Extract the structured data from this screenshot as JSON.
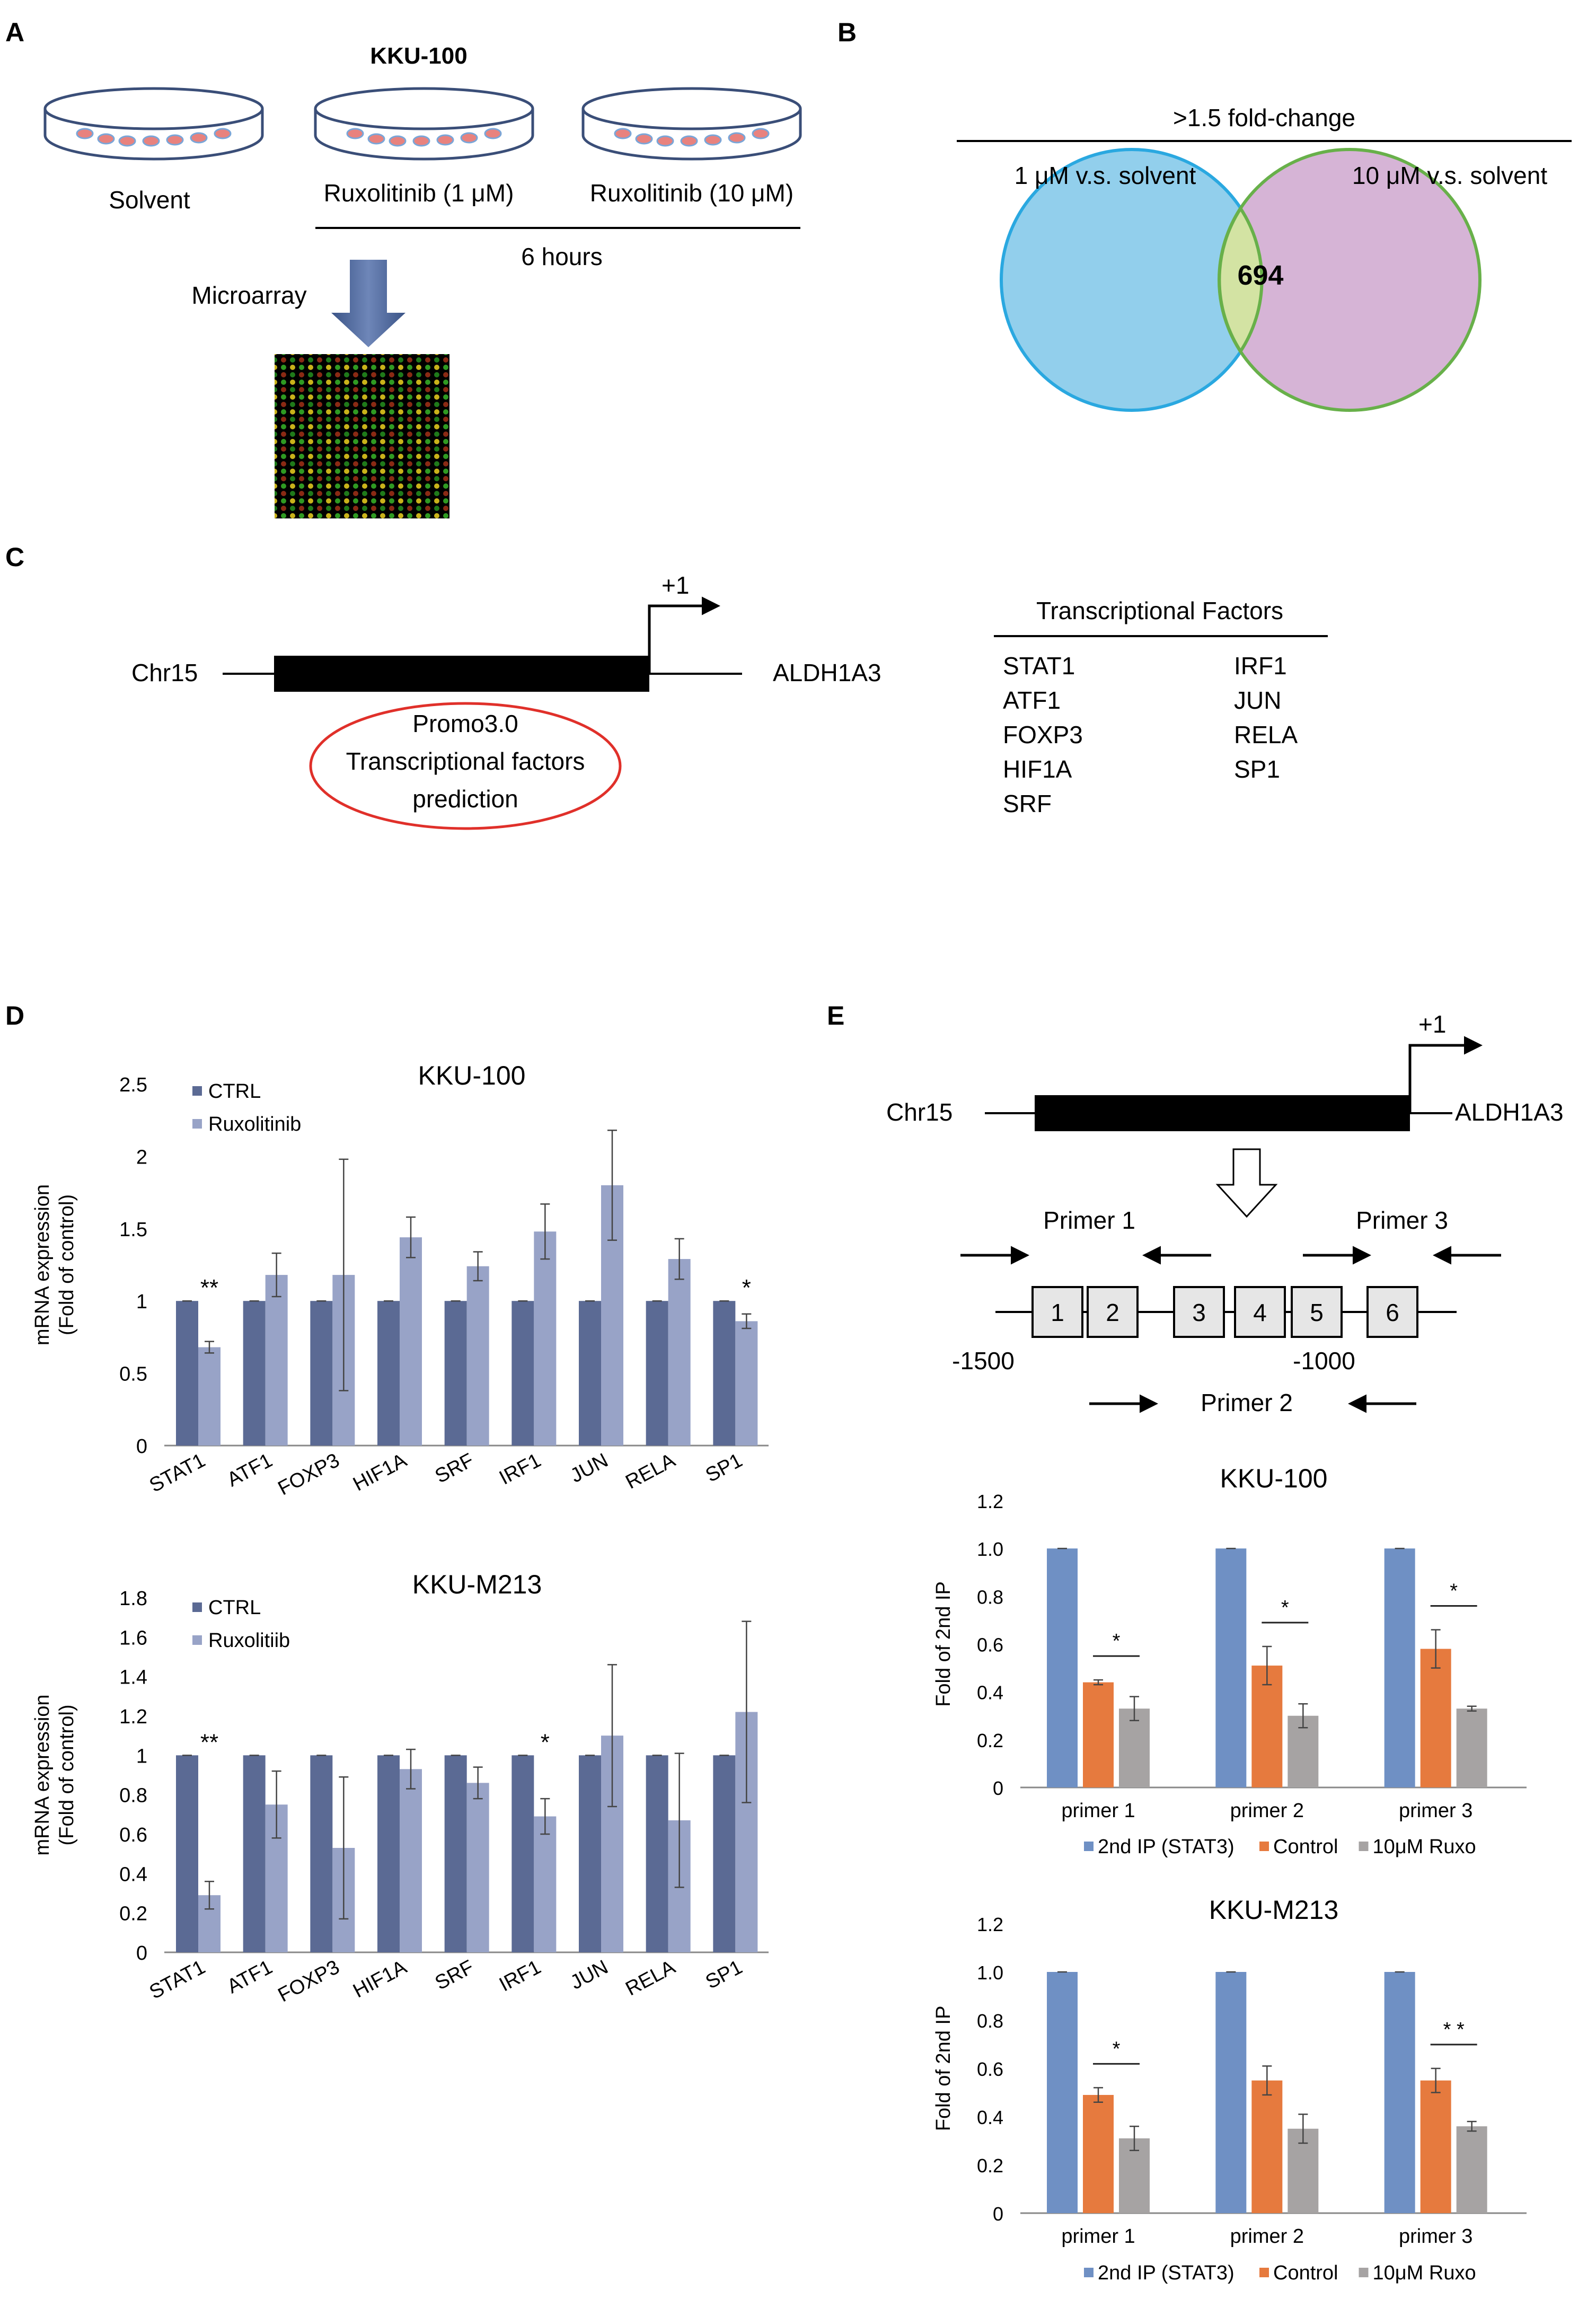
{
  "panels": {
    "A": {
      "label": "A",
      "cell_line": "KKU-100",
      "dish_labels": [
        "Solvent",
        "Ruxolitinib (1 μM)",
        "Ruxolitinib (10 μM)"
      ],
      "duration": "6 hours",
      "method": "Microarray"
    },
    "B": {
      "label": "B",
      "title": ">1.5 fold-change",
      "left_set": "1 μM v.s. solvent",
      "right_set": "10 μM v.s. solvent",
      "overlap": "694",
      "colors": {
        "left": "#92cfec",
        "right": "#d6b4d6",
        "overlap": "#d3e3a3",
        "left_stroke": "#2aa8e0",
        "right_stroke": "#68b04a"
      }
    },
    "C": {
      "label": "C",
      "chromosome": "Chr15",
      "gene": "ALDH1A3",
      "tss": "+1",
      "prediction_lines": [
        "Promo3.0",
        "Transcriptional factors",
        "prediction"
      ],
      "tf_header": "Transcriptional Factors",
      "tf_col1": [
        "STAT1",
        "ATF1",
        "FOXP3",
        "HIF1A",
        "SRF"
      ],
      "tf_col2": [
        "IRF1",
        "JUN",
        "RELA",
        "SP1"
      ]
    },
    "D": {
      "label": "D"
    },
    "E": {
      "label": "E",
      "chromosome": "Chr15",
      "gene": "ALDH1A3",
      "tss": "+1",
      "primers": [
        "Primer 1",
        "Primer 2",
        "Primer 3"
      ],
      "sites": [
        "1",
        "2",
        "3",
        "4",
        "5",
        "6"
      ],
      "positions": [
        "-1500",
        "-1000"
      ]
    }
  },
  "chart_data": [
    {
      "id": "D1",
      "type": "bar",
      "title": "KKU-100",
      "ylabel": "mRNA expression\n(Fold of control)",
      "ylim": [
        0,
        2.5
      ],
      "yticks": [
        "0",
        "0.5",
        "1",
        "1.5",
        "2",
        "2.5"
      ],
      "categories": [
        "STAT1",
        "ATF1",
        "FOXP3",
        "HIF1A",
        "SRF",
        "IRF1",
        "JUN",
        "RELA",
        "SP1"
      ],
      "series": [
        {
          "name": "CTRL",
          "color": "#5b6a94",
          "values": [
            1,
            1,
            1,
            1,
            1,
            1,
            1,
            1,
            1
          ],
          "errors": [
            0,
            0,
            0,
            0,
            0,
            0,
            0,
            0,
            0
          ]
        },
        {
          "name": "Ruxolitinib",
          "color": "#98a3c7",
          "values": [
            0.68,
            1.18,
            1.18,
            1.44,
            1.24,
            1.48,
            1.8,
            1.29,
            0.86
          ],
          "errors": [
            0.04,
            0.15,
            0.8,
            0.14,
            0.1,
            0.19,
            0.38,
            0.14,
            0.05
          ]
        }
      ],
      "significance": [
        {
          "category": "STAT1",
          "label": "**"
        },
        {
          "category": "SP1",
          "label": "*"
        }
      ],
      "legend": "top-left"
    },
    {
      "id": "D2",
      "type": "bar",
      "title": "KKU-M213",
      "ylabel": "mRNA expression\n(Fold of control)",
      "ylim": [
        0,
        1.8
      ],
      "yticks": [
        "0",
        "0.2",
        "0.4",
        "0.6",
        "0.8",
        "1",
        "1.2",
        "1.4",
        "1.6",
        "1.8"
      ],
      "categories": [
        "STAT1",
        "ATF1",
        "FOXP3",
        "HIF1A",
        "SRF",
        "IRF1",
        "JUN",
        "RELA",
        "SP1"
      ],
      "series": [
        {
          "name": "CTRL",
          "color": "#5b6a94",
          "values": [
            1,
            1,
            1,
            1,
            1,
            1,
            1,
            1,
            1
          ],
          "errors": [
            0,
            0,
            0,
            0,
            0,
            0,
            0,
            0,
            0
          ]
        },
        {
          "name": "Ruxolitiib",
          "color": "#98a3c7",
          "values": [
            0.29,
            0.75,
            0.53,
            0.93,
            0.86,
            0.69,
            1.1,
            0.67,
            1.22
          ],
          "errors": [
            0.07,
            0.17,
            0.36,
            0.1,
            0.08,
            0.09,
            0.36,
            0.34,
            0.46
          ]
        }
      ],
      "significance": [
        {
          "category": "STAT1",
          "label": "**"
        },
        {
          "category": "IRF1",
          "label": "*"
        }
      ],
      "legend": "top-left"
    },
    {
      "id": "E1",
      "type": "bar",
      "title": "KKU-100",
      "ylabel": "Fold of 2nd IP",
      "ylim": [
        0,
        1.2
      ],
      "yticks": [
        "0",
        "0.2",
        "0.4",
        "0.6",
        "0.8",
        "1.0",
        "1.2"
      ],
      "categories": [
        "primer 1",
        "primer 2",
        "primer 3"
      ],
      "series": [
        {
          "name": "2nd IP (STAT3)",
          "color": "#6f90c4",
          "values": [
            1.0,
            1.0,
            1.0
          ],
          "errors": [
            0,
            0,
            0
          ]
        },
        {
          "name": "Control",
          "color": "#e67a3e",
          "values": [
            0.44,
            0.51,
            0.58
          ],
          "errors": [
            0.01,
            0.08,
            0.08
          ]
        },
        {
          "name": "10μM Ruxo",
          "color": "#a6a3a3",
          "values": [
            0.33,
            0.3,
            0.33
          ],
          "errors": [
            0.05,
            0.05,
            0.01
          ]
        }
      ],
      "significance": [
        {
          "category": "primer 1",
          "label": "*"
        },
        {
          "category": "primer 2",
          "label": "*"
        },
        {
          "category": "primer 3",
          "label": "*"
        }
      ],
      "legend": "bottom"
    },
    {
      "id": "E2",
      "type": "bar",
      "title": "KKU-M213",
      "ylabel": "Fold of 2nd IP",
      "ylim": [
        0,
        1.2
      ],
      "yticks": [
        "0",
        "0.2",
        "0.4",
        "0.6",
        "0.8",
        "1.0",
        "1.2"
      ],
      "categories": [
        "primer 1",
        "primer 2",
        "primer 3"
      ],
      "series": [
        {
          "name": "2nd IP (STAT3)",
          "color": "#6f90c4",
          "values": [
            1.0,
            1.0,
            1.0
          ],
          "errors": [
            0,
            0,
            0
          ]
        },
        {
          "name": "Control",
          "color": "#e67a3e",
          "values": [
            0.49,
            0.55,
            0.55
          ],
          "errors": [
            0.03,
            0.06,
            0.05
          ]
        },
        {
          "name": "10μM Ruxo",
          "color": "#a6a3a3",
          "values": [
            0.31,
            0.35,
            0.36
          ],
          "errors": [
            0.05,
            0.06,
            0.02
          ]
        }
      ],
      "significance": [
        {
          "category": "primer 1",
          "label": "*"
        },
        {
          "category": "primer 3",
          "label": "* *"
        }
      ],
      "legend": "bottom"
    }
  ]
}
